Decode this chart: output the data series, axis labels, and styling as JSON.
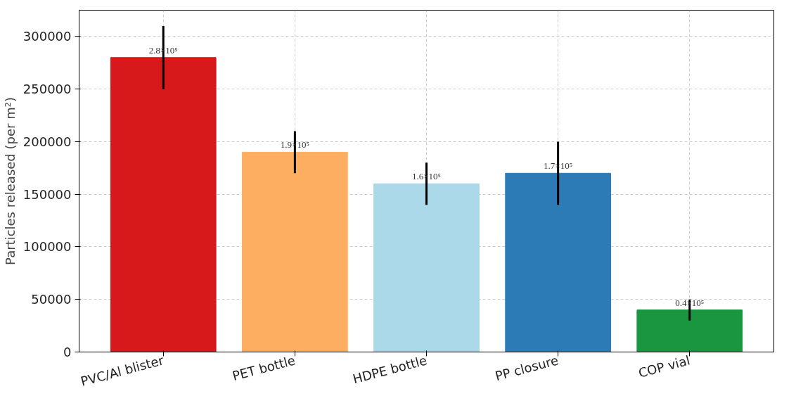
{
  "chart_data": {
    "type": "bar",
    "ylabel": "Particles released (per m²)",
    "categories": [
      "PVC/Al blister",
      "PET bottle",
      "HDPE bottle",
      "PP closure",
      "COP vial"
    ],
    "values": [
      280000,
      190000,
      160000,
      170000,
      40000
    ],
    "colors": [
      "#d7191c",
      "#fdae61",
      "#abd9e9",
      "#2c7bb6",
      "#1a9641"
    ],
    "errors": [
      30000,
      20000,
      20000,
      30000,
      10000
    ],
    "value_labels": [
      "2.8×10⁵",
      "1.9×10⁵",
      "1.6×10⁵",
      "1.7×10⁵",
      "0.4×10⁵"
    ],
    "ylim": [
      0,
      325000
    ],
    "yticks": [
      0,
      50000,
      100000,
      150000,
      200000,
      250000,
      300000
    ],
    "grid": true
  }
}
